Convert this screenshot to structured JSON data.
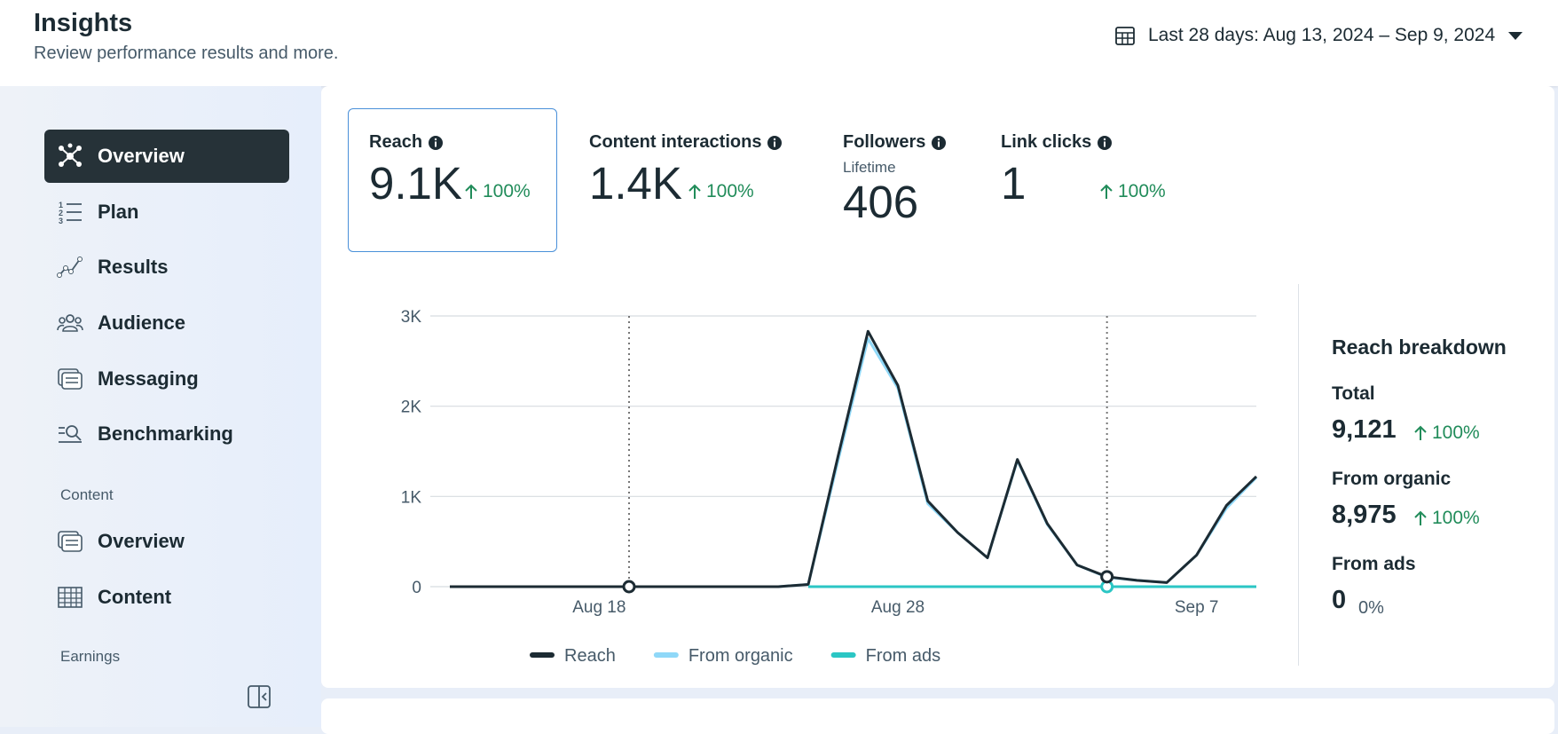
{
  "header": {
    "title": "Insights",
    "subtitle": "Review performance results and more.",
    "date_range": "Last 28 days: Aug 13, 2024 – Sep 9, 2024"
  },
  "sidebar": {
    "items": [
      "Overview",
      "Plan",
      "Results",
      "Audience",
      "Messaging",
      "Benchmarking"
    ],
    "sections": [
      {
        "title": "Content",
        "items": [
          "Overview",
          "Content"
        ]
      },
      {
        "title": "Earnings"
      }
    ]
  },
  "metrics": [
    {
      "label": "Reach",
      "value": "9.1K",
      "change": "100%"
    },
    {
      "label": "Content interactions",
      "value": "1.4K",
      "change": "100%"
    },
    {
      "label": "Followers",
      "sublabel": "Lifetime",
      "value": "406"
    },
    {
      "label": "Link clicks",
      "value": "1",
      "change": "100%"
    }
  ],
  "chart_data": {
    "type": "line",
    "categories": [
      null,
      null,
      null,
      null,
      null,
      "Aug 18",
      null,
      null,
      null,
      null,
      null,
      null,
      null,
      null,
      null,
      "Aug 28",
      null,
      null,
      null,
      null,
      null,
      null,
      null,
      null,
      null,
      "Sep 7",
      null,
      null
    ],
    "series": [
      {
        "name": "Reach",
        "color": "#1c2b33",
        "values": [
          0,
          0,
          0,
          0,
          0,
          0,
          0,
          0,
          0,
          0,
          0,
          0,
          25,
          1450,
          2830,
          2230,
          950,
          600,
          320,
          1410,
          700,
          240,
          110,
          70,
          45,
          350,
          900,
          1220
        ]
      },
      {
        "name": "From organic",
        "color": "#8fd8f8",
        "values": [
          0,
          0,
          0,
          0,
          0,
          0,
          0,
          0,
          0,
          0,
          0,
          0,
          25,
          1400,
          2750,
          2200,
          920,
          600,
          320,
          1400,
          690,
          240,
          105,
          70,
          45,
          350,
          870,
          1210
        ]
      },
      {
        "name": "From ads",
        "color": "#2bc6c4",
        "values": [
          null,
          null,
          null,
          null,
          null,
          null,
          null,
          null,
          null,
          null,
          null,
          null,
          0,
          0,
          0,
          0,
          0,
          0,
          0,
          0,
          0,
          0,
          0,
          0,
          0,
          0,
          0,
          0
        ]
      }
    ],
    "ylim": [
      0,
      3000
    ],
    "yticks": [
      0,
      {
        "value": 1000,
        "label": "1K"
      },
      {
        "value": 2000,
        "label": "2K"
      },
      {
        "value": 3000,
        "label": "3K"
      }
    ],
    "grid": true,
    "legend": "bottom"
  },
  "breakdown": {
    "title": "Reach breakdown",
    "items": [
      {
        "label": "Total",
        "value": "9,121",
        "change": "100%"
      },
      {
        "label": "From organic",
        "value": "8,975",
        "change": "100%"
      },
      {
        "label": "From ads",
        "value": "0",
        "change": "0%"
      }
    ]
  }
}
